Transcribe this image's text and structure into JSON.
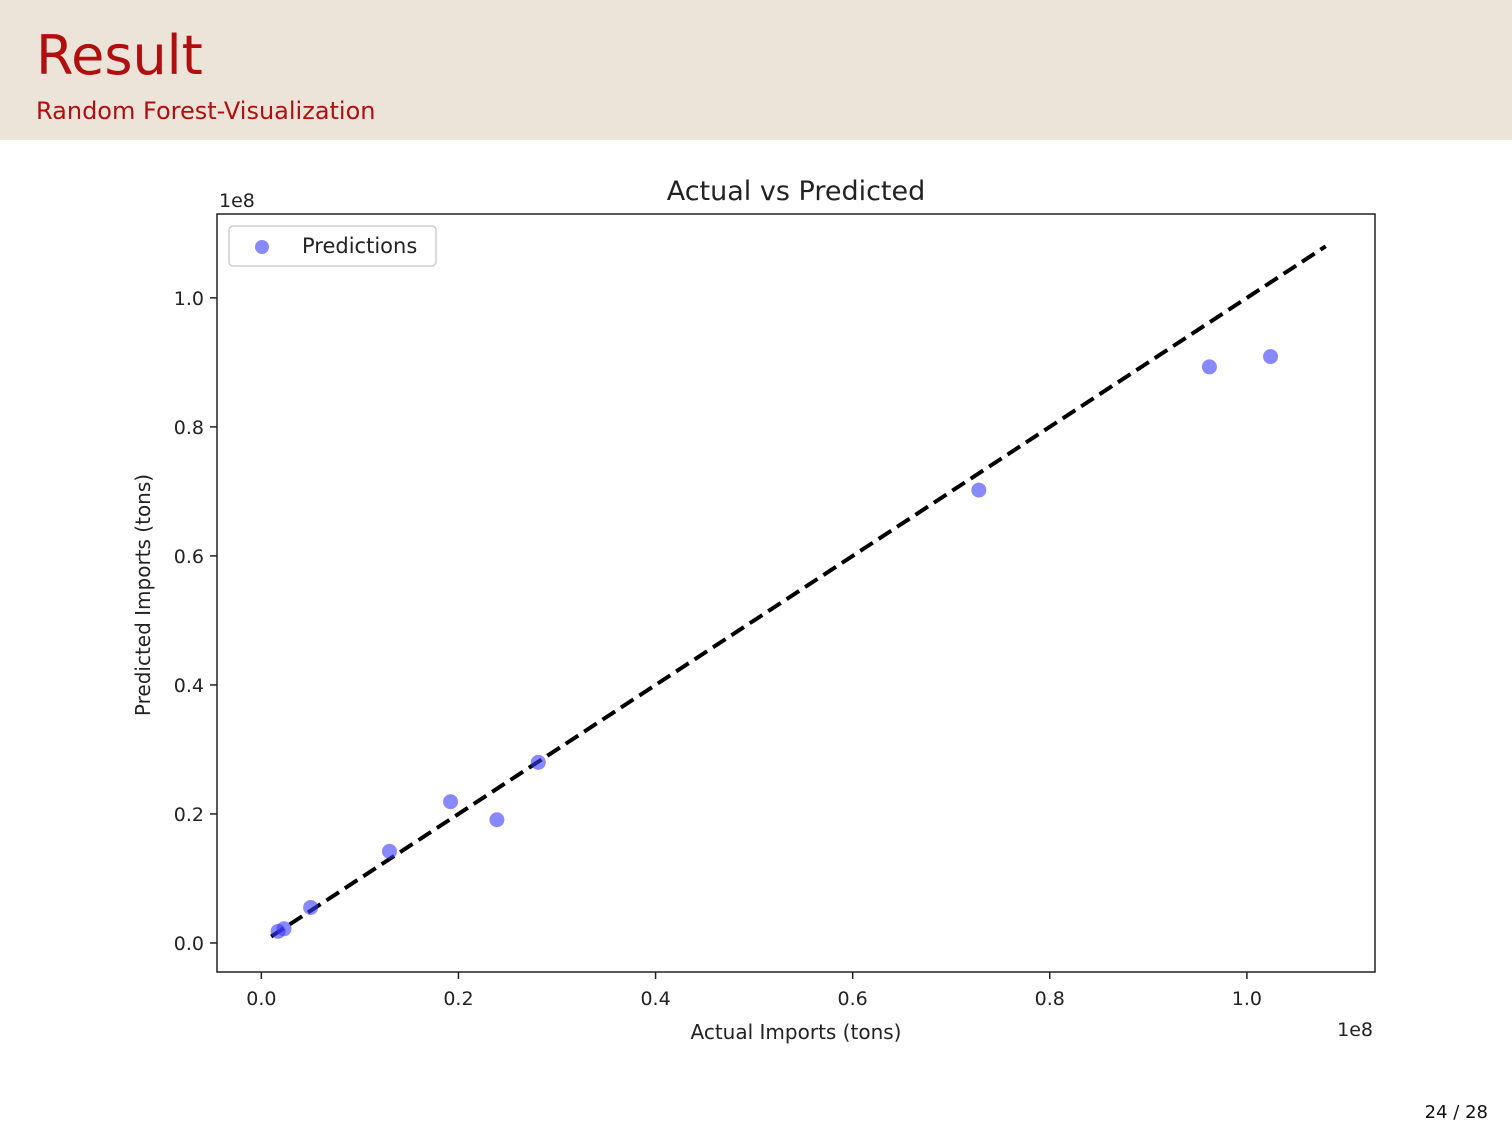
{
  "slide": {
    "title": "Result",
    "subtitle": "Random Forest-Visualization",
    "page_number": "24 / 28"
  },
  "colors": {
    "header_background": "#ece4d9",
    "title_text": "#b00f0f",
    "points": "#3b3bff",
    "reference_line": "#000000"
  },
  "chart_data": {
    "type": "scatter",
    "title": "Actual vs Predicted",
    "xlabel": "Actual Imports (tons)",
    "ylabel": "Predicted Imports (tons)",
    "x_offset_label": "1e8",
    "y_offset_label": "1e8",
    "xlim": [
      -4500000,
      113000000
    ],
    "ylim": [
      -4500000,
      113000000
    ],
    "xticks": [
      0,
      20000000,
      40000000,
      60000000,
      80000000,
      100000000
    ],
    "xtick_labels": [
      "0.0",
      "0.2",
      "0.4",
      "0.6",
      "0.8",
      "1.0"
    ],
    "yticks": [
      0,
      20000000,
      40000000,
      60000000,
      80000000,
      100000000
    ],
    "ytick_labels": [
      "0.0",
      "0.2",
      "0.4",
      "0.6",
      "0.8",
      "1.0"
    ],
    "grid": false,
    "legend": {
      "position": "upper-left",
      "entries": [
        "Predictions"
      ]
    },
    "series": [
      {
        "name": "Predictions",
        "marker": "circle",
        "alpha": 0.6,
        "points": [
          {
            "x": 1700000,
            "y": 1800000
          },
          {
            "x": 2300000,
            "y": 2200000
          },
          {
            "x": 5000000,
            "y": 5500000
          },
          {
            "x": 13000000,
            "y": 14200000
          },
          {
            "x": 19200000,
            "y": 21900000
          },
          {
            "x": 23900000,
            "y": 19100000
          },
          {
            "x": 28100000,
            "y": 28000000
          },
          {
            "x": 72800000,
            "y": 70200000
          },
          {
            "x": 96200000,
            "y": 89300000
          },
          {
            "x": 102400000,
            "y": 90900000
          }
        ]
      }
    ],
    "reference_line": {
      "style": "dashed",
      "from": [
        1000000,
        1000000
      ],
      "to": [
        108000000,
        108000000
      ]
    }
  }
}
